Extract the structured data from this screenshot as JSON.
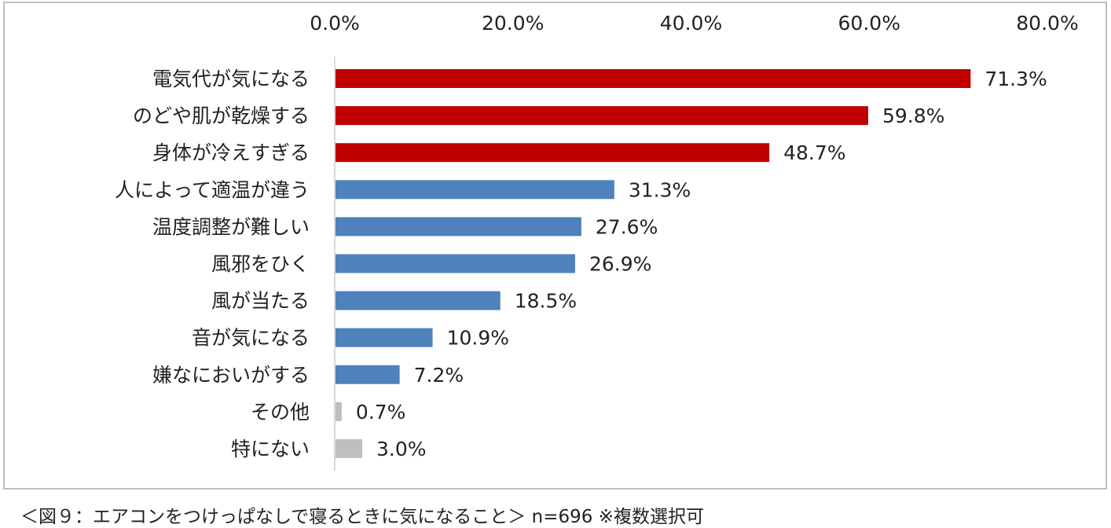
{
  "chart_data": {
    "type": "bar",
    "orientation": "horizontal",
    "categories": [
      "電気代が気になる",
      "のどや肌が乾燥する",
      "身体が冷えすぎる",
      "人によって適温が違う",
      "温度調整が難しい",
      "風邪をひく",
      "風が当たる",
      "音が気になる",
      "嫌なにおいがする",
      "その他",
      "特にない"
    ],
    "values": [
      71.3,
      59.8,
      48.7,
      31.3,
      27.6,
      26.9,
      18.5,
      10.9,
      7.2,
      0.7,
      3.0
    ],
    "value_labels": [
      "71.3%",
      "59.8%",
      "48.7%",
      "31.3%",
      "27.6%",
      "26.9%",
      "18.5%",
      "10.9%",
      "7.2%",
      "0.7%",
      "3.0%"
    ],
    "colors": [
      "#c00000",
      "#c00000",
      "#c00000",
      "#4f81bd",
      "#4f81bd",
      "#4f81bd",
      "#4f81bd",
      "#4f81bd",
      "#4f81bd",
      "#bfbfbf",
      "#bfbfbf"
    ],
    "xlim": [
      0,
      80
    ],
    "xticks": [
      "0.0%",
      "20.0%",
      "40.0%",
      "60.0%",
      "80.0%"
    ],
    "axis_position": "top",
    "grid": false,
    "legend": "none"
  },
  "caption": "＜図９：エアコンをつけっぱなしで寝るときに気になること＞ n=696 ※複数選択可"
}
